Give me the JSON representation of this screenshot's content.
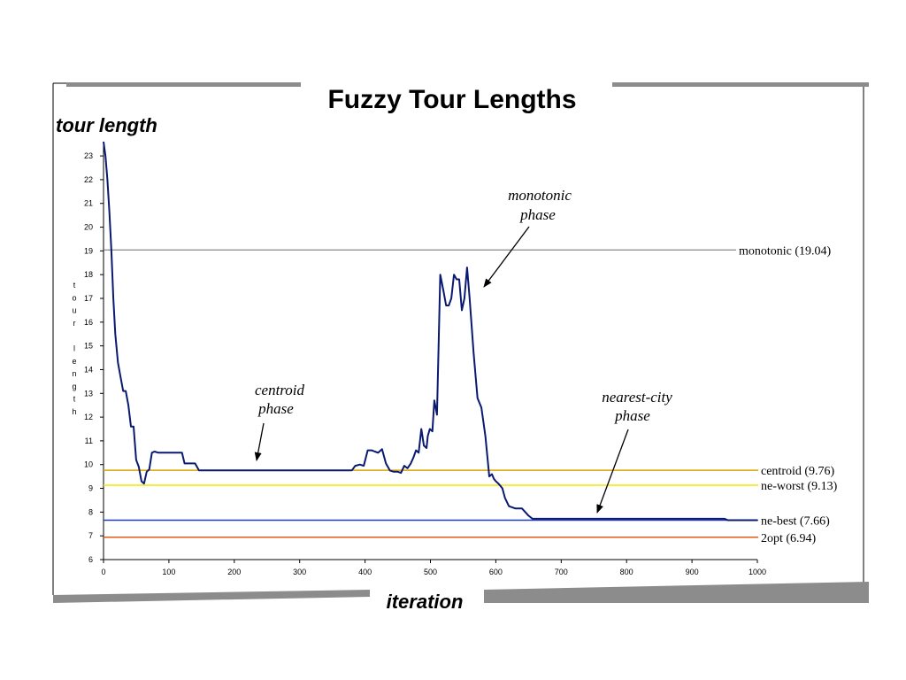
{
  "slide": {
    "title": "Fuzzy Tour Lengths",
    "y_title": "tour length",
    "x_title": "iteration"
  },
  "chart_data": {
    "type": "line",
    "title": "",
    "xlabel": "",
    "ylabel": "tour length",
    "xlim": [
      0,
      1000
    ],
    "ylim": [
      6,
      23.6
    ],
    "x_ticks": [
      0,
      100,
      200,
      300,
      400,
      500,
      600,
      700,
      800,
      900,
      1000
    ],
    "y_ticks": [
      6,
      7,
      8,
      9,
      10,
      11,
      12,
      13,
      14,
      15,
      16,
      17,
      18,
      19,
      20,
      21,
      22,
      23
    ],
    "x_tick_labels": [
      "0",
      "100",
      "200",
      "300",
      "400",
      "500",
      "600",
      "700",
      "800",
      "900",
      "1000"
    ],
    "grid": false,
    "series": [
      {
        "color": "#0a1a70",
        "x": [
          0,
          3,
          6,
          9,
          12,
          15,
          18,
          22,
          26,
          30,
          34,
          38,
          42,
          46,
          50,
          54,
          58,
          62,
          66,
          70,
          74,
          78,
          84,
          90,
          100,
          110,
          120,
          124,
          130,
          140,
          146,
          150,
          160,
          200,
          250,
          300,
          350,
          380,
          385,
          392,
          398,
          404,
          410,
          415,
          420,
          426,
          432,
          438,
          444,
          450,
          455,
          460,
          465,
          470,
          474,
          478,
          482,
          486,
          490,
          494,
          496,
          499,
          503,
          506,
          510,
          515,
          520,
          524,
          528,
          532,
          536,
          540,
          544,
          548,
          552,
          556,
          560,
          566,
          572,
          578,
          584,
          590,
          594,
          597,
          600,
          604,
          610,
          614,
          620,
          630,
          640,
          650,
          656,
          660,
          700,
          800,
          900,
          950,
          955,
          1000
        ],
        "y": [
          23.6,
          23.0,
          22.0,
          20.6,
          19.0,
          17.0,
          15.5,
          14.3,
          13.7,
          13.1,
          13.1,
          12.5,
          11.6,
          11.6,
          10.2,
          9.9,
          9.3,
          9.2,
          9.7,
          9.8,
          10.5,
          10.55,
          10.5,
          10.5,
          10.5,
          10.5,
          10.5,
          10.05,
          10.05,
          10.05,
          9.76,
          9.76,
          9.76,
          9.76,
          9.76,
          9.76,
          9.76,
          9.76,
          9.95,
          10.0,
          9.95,
          10.6,
          10.6,
          10.55,
          10.5,
          10.65,
          10.05,
          9.75,
          9.7,
          9.7,
          9.65,
          9.95,
          9.85,
          10.05,
          10.3,
          10.6,
          10.5,
          11.5,
          10.8,
          10.7,
          11.2,
          11.5,
          11.4,
          12.7,
          12.1,
          18.0,
          17.3,
          16.7,
          16.7,
          17.0,
          18.0,
          17.8,
          17.8,
          16.5,
          17.0,
          18.3,
          17.0,
          14.7,
          12.8,
          12.4,
          11.2,
          9.5,
          9.6,
          9.4,
          9.3,
          9.2,
          9.0,
          8.6,
          8.25,
          8.15,
          8.15,
          7.85,
          7.72,
          7.72,
          7.72,
          7.72,
          7.72,
          7.72,
          7.66,
          7.66
        ]
      }
    ],
    "reference_lines": [
      {
        "label": "monotonic (19.04)",
        "y": 19.04,
        "color": "#6a6a6a"
      },
      {
        "label": "centroid  (9.76)",
        "y": 9.76,
        "color": "#d9a400"
      },
      {
        "label": "ne-worst  (9.13)",
        "y": 9.13,
        "color": "#f2e800"
      },
      {
        "label": "ne-best  (7.66)",
        "y": 7.66,
        "color": "#1e3cbf"
      },
      {
        "label": "2opt  (6.94)",
        "y": 6.94,
        "color": "#e05a1a"
      }
    ],
    "annotations": [
      {
        "line1": "monotonic",
        "line2": "phase"
      },
      {
        "line1": "centroid",
        "line2": "phase"
      },
      {
        "line1": "nearest-city",
        "line2": "phase"
      }
    ],
    "axis_letters": [
      "t",
      "o",
      "u",
      "r",
      "",
      "l",
      "e",
      "n",
      "g",
      "t",
      "h"
    ]
  }
}
